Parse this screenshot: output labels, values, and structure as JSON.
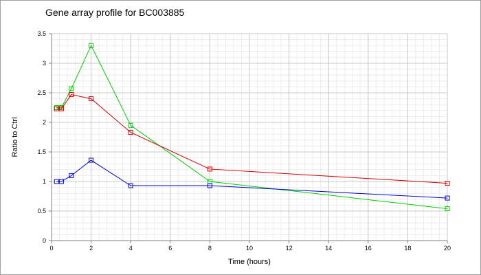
{
  "chart_data": {
    "type": "line",
    "title": "Gene array profile for BC003885",
    "xlabel": "Time (hours)",
    "ylabel": "Ratio to Ctrl",
    "xlim": [
      0,
      20
    ],
    "ylim": [
      0,
      3.5
    ],
    "xticks": [
      0,
      2,
      4,
      6,
      8,
      10,
      12,
      14,
      16,
      18,
      20
    ],
    "yticks": [
      0,
      0.5,
      1,
      1.5,
      2,
      2.5,
      3,
      3.5
    ],
    "grid": true,
    "legend": "none",
    "series": [
      {
        "color": "#00cc00",
        "x": [
          0.25,
          0.5,
          1,
          2,
          4,
          8,
          20
        ],
        "y": [
          2.25,
          2.25,
          2.57,
          3.3,
          1.95,
          1.0,
          0.54
        ]
      },
      {
        "color": "#cc0000",
        "x": [
          0.25,
          0.5,
          1,
          2,
          4,
          8,
          20
        ],
        "y": [
          2.23,
          2.23,
          2.47,
          2.4,
          1.83,
          1.21,
          0.97
        ]
      },
      {
        "color": "#0000cc",
        "x": [
          0.25,
          0.5,
          1,
          2,
          4,
          8,
          20
        ],
        "y": [
          1.0,
          1.0,
          1.1,
          1.36,
          0.93,
          0.93,
          0.72
        ]
      }
    ]
  }
}
